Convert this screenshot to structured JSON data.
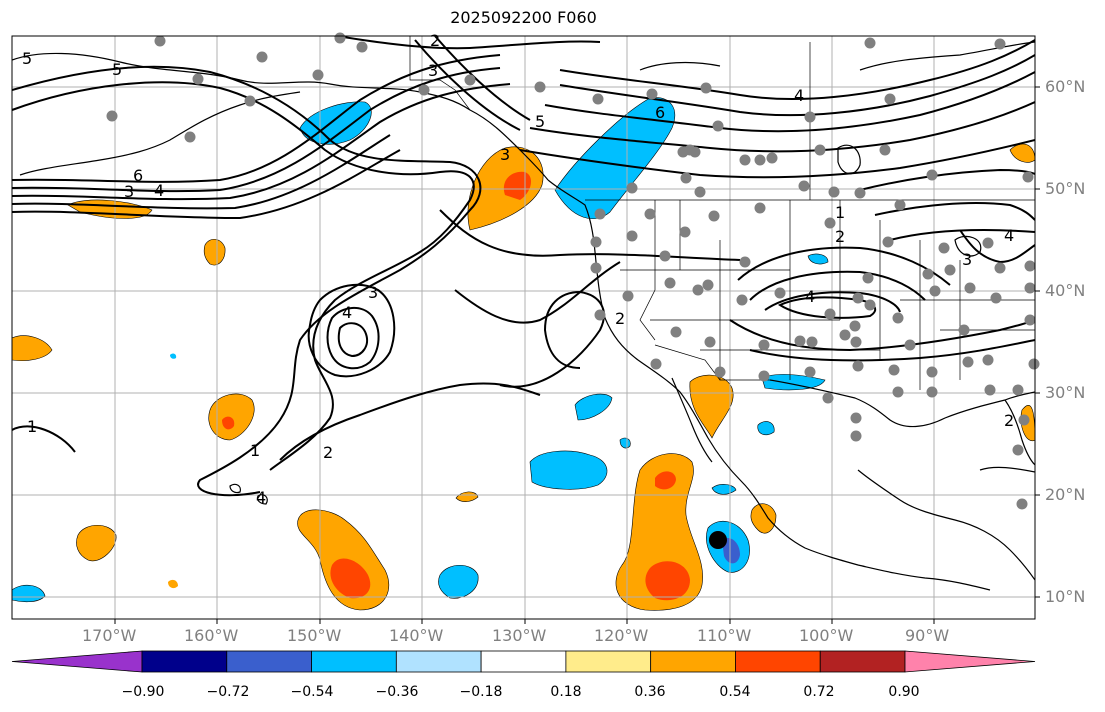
{
  "title": "2025092200 F060",
  "lat_labels": [
    "60°N",
    "50°N",
    "40°N",
    "30°N",
    "20°N",
    "10°N"
  ],
  "lon_labels": [
    "170°W",
    "160°W",
    "150°W",
    "140°W",
    "130°W",
    "120°W",
    "110°W",
    "100°W",
    "90°W"
  ],
  "colorbar": {
    "ticks": [
      "−0.90",
      "−0.72",
      "−0.54",
      "−0.36",
      "−0.18",
      "0.18",
      "0.36",
      "0.54",
      "0.72",
      "0.90"
    ],
    "colors": [
      "#9932cc",
      "#00008b",
      "#3a5fcd",
      "#00bfff",
      "#b0e2ff",
      "#ffffff",
      "#ffec8b",
      "#ffa500",
      "#ff4500",
      "#b22222",
      "#ff82ab"
    ]
  },
  "contour_labels": [
    "5",
    "4",
    "2",
    "3",
    "5",
    "6",
    "4",
    "6",
    "3",
    "4",
    "3",
    "4",
    "5",
    "1",
    "2",
    "4",
    "3",
    "4",
    "1",
    "2",
    "1",
    "2",
    "2",
    "4",
    "3",
    "4"
  ],
  "colors": {
    "station_dot": "#808080",
    "storm_center": "#000000",
    "grid": "#b0b0b0",
    "contour": "#000000",
    "coast": "#000000"
  }
}
